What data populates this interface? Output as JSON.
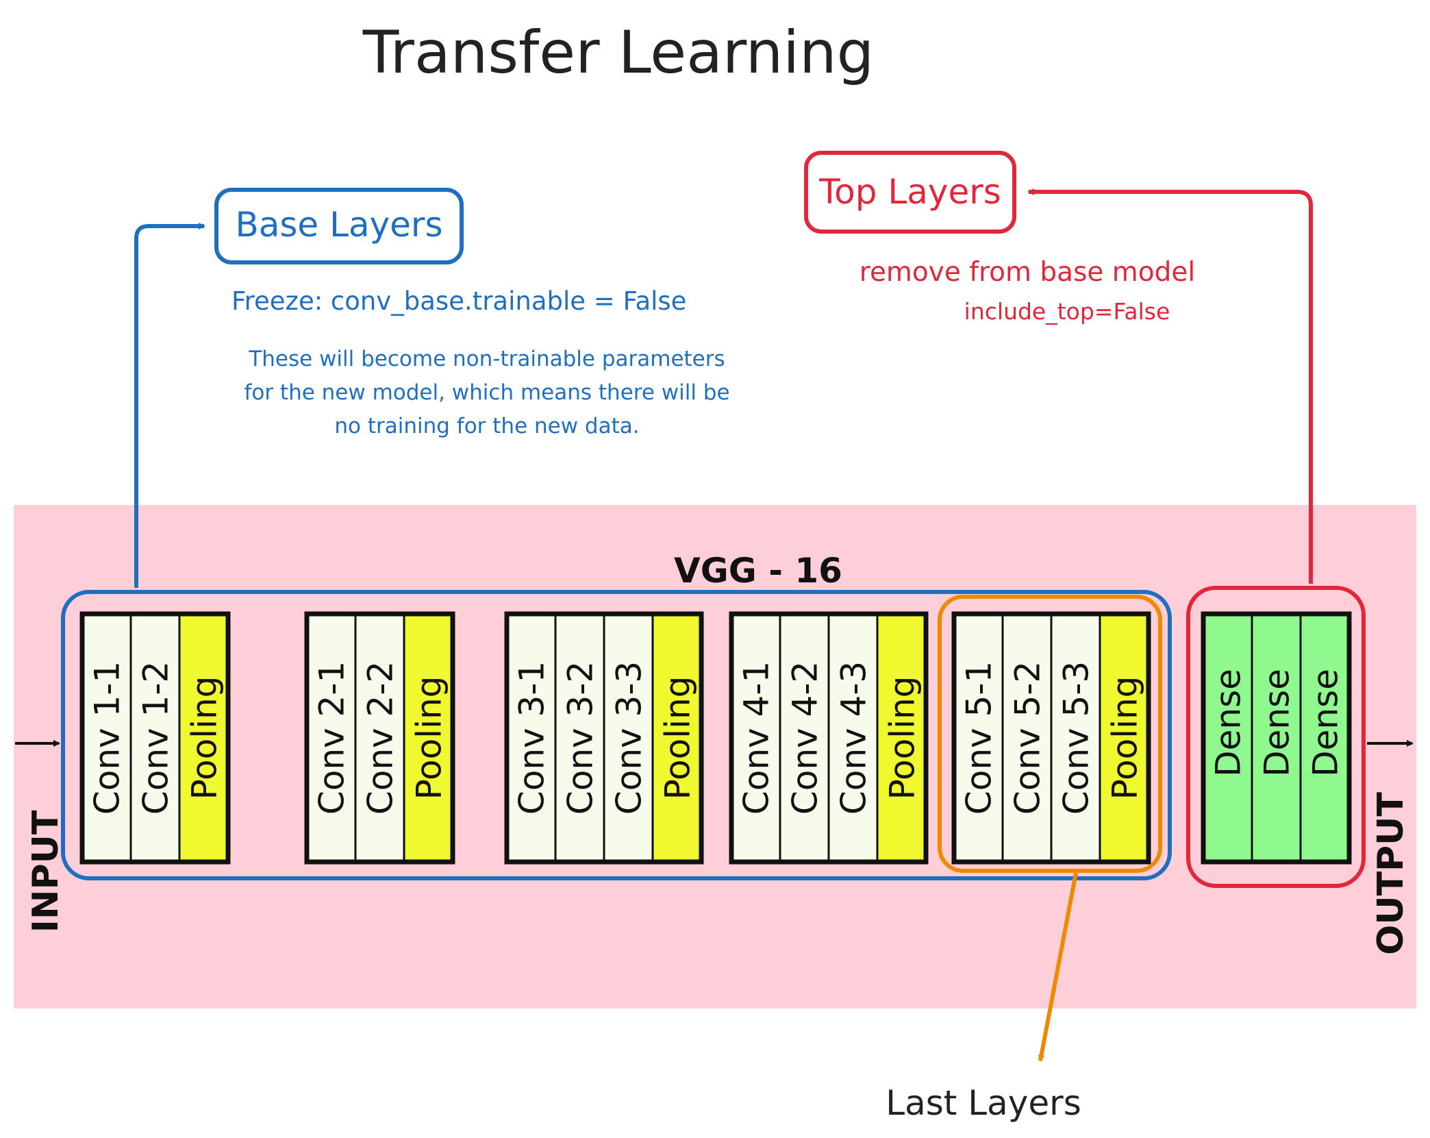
{
  "title": "Transfer Learning",
  "base_layers": {
    "label": "Base Layers",
    "freeze_note": "Freeze: conv_base.trainable = False",
    "description": [
      "These will become non-trainable parameters",
      "for the new model, which means there will be",
      "no training for the new data."
    ]
  },
  "top_layers": {
    "label": "Top Layers",
    "note": "remove from base model",
    "code": "include_top=False"
  },
  "last_layers": {
    "label": "Last Layers"
  },
  "network": {
    "name": "VGG - 16",
    "input_label": "INPUT",
    "output_label": "OUTPUT",
    "blocks": [
      {
        "layers": [
          {
            "label": "Conv 1-1",
            "kind": "conv"
          },
          {
            "label": "Conv 1-2",
            "kind": "conv"
          },
          {
            "label": "Pooling",
            "kind": "pool"
          }
        ]
      },
      {
        "layers": [
          {
            "label": "Conv 2-1",
            "kind": "conv"
          },
          {
            "label": "Conv 2-2",
            "kind": "conv"
          },
          {
            "label": "Pooling",
            "kind": "pool"
          }
        ]
      },
      {
        "layers": [
          {
            "label": "Conv 3-1",
            "kind": "conv"
          },
          {
            "label": "Conv 3-2",
            "kind": "conv"
          },
          {
            "label": "Conv 3-3",
            "kind": "conv"
          },
          {
            "label": "Pooling",
            "kind": "pool"
          }
        ]
      },
      {
        "layers": [
          {
            "label": "Conv 4-1",
            "kind": "conv"
          },
          {
            "label": "Conv 4-2",
            "kind": "conv"
          },
          {
            "label": "Conv 4-3",
            "kind": "conv"
          },
          {
            "label": "Pooling",
            "kind": "pool"
          }
        ]
      },
      {
        "layers": [
          {
            "label": "Conv 5-1",
            "kind": "conv"
          },
          {
            "label": "Conv 5-2",
            "kind": "conv"
          },
          {
            "label": "Conv 5-3",
            "kind": "conv"
          },
          {
            "label": "Pooling",
            "kind": "pool"
          }
        ]
      },
      {
        "layers": [
          {
            "label": "Dense",
            "kind": "dense"
          },
          {
            "label": "Dense",
            "kind": "dense"
          },
          {
            "label": "Dense",
            "kind": "dense"
          }
        ]
      }
    ]
  },
  "colors": {
    "base": "#1f6fc1",
    "top": "#e0283a",
    "last": "#ee8a00",
    "panel": "#ffcfd9",
    "conv": "#f6fbec",
    "pool": "#f0f830",
    "dense": "#8ff98f",
    "title": "#222222"
  }
}
